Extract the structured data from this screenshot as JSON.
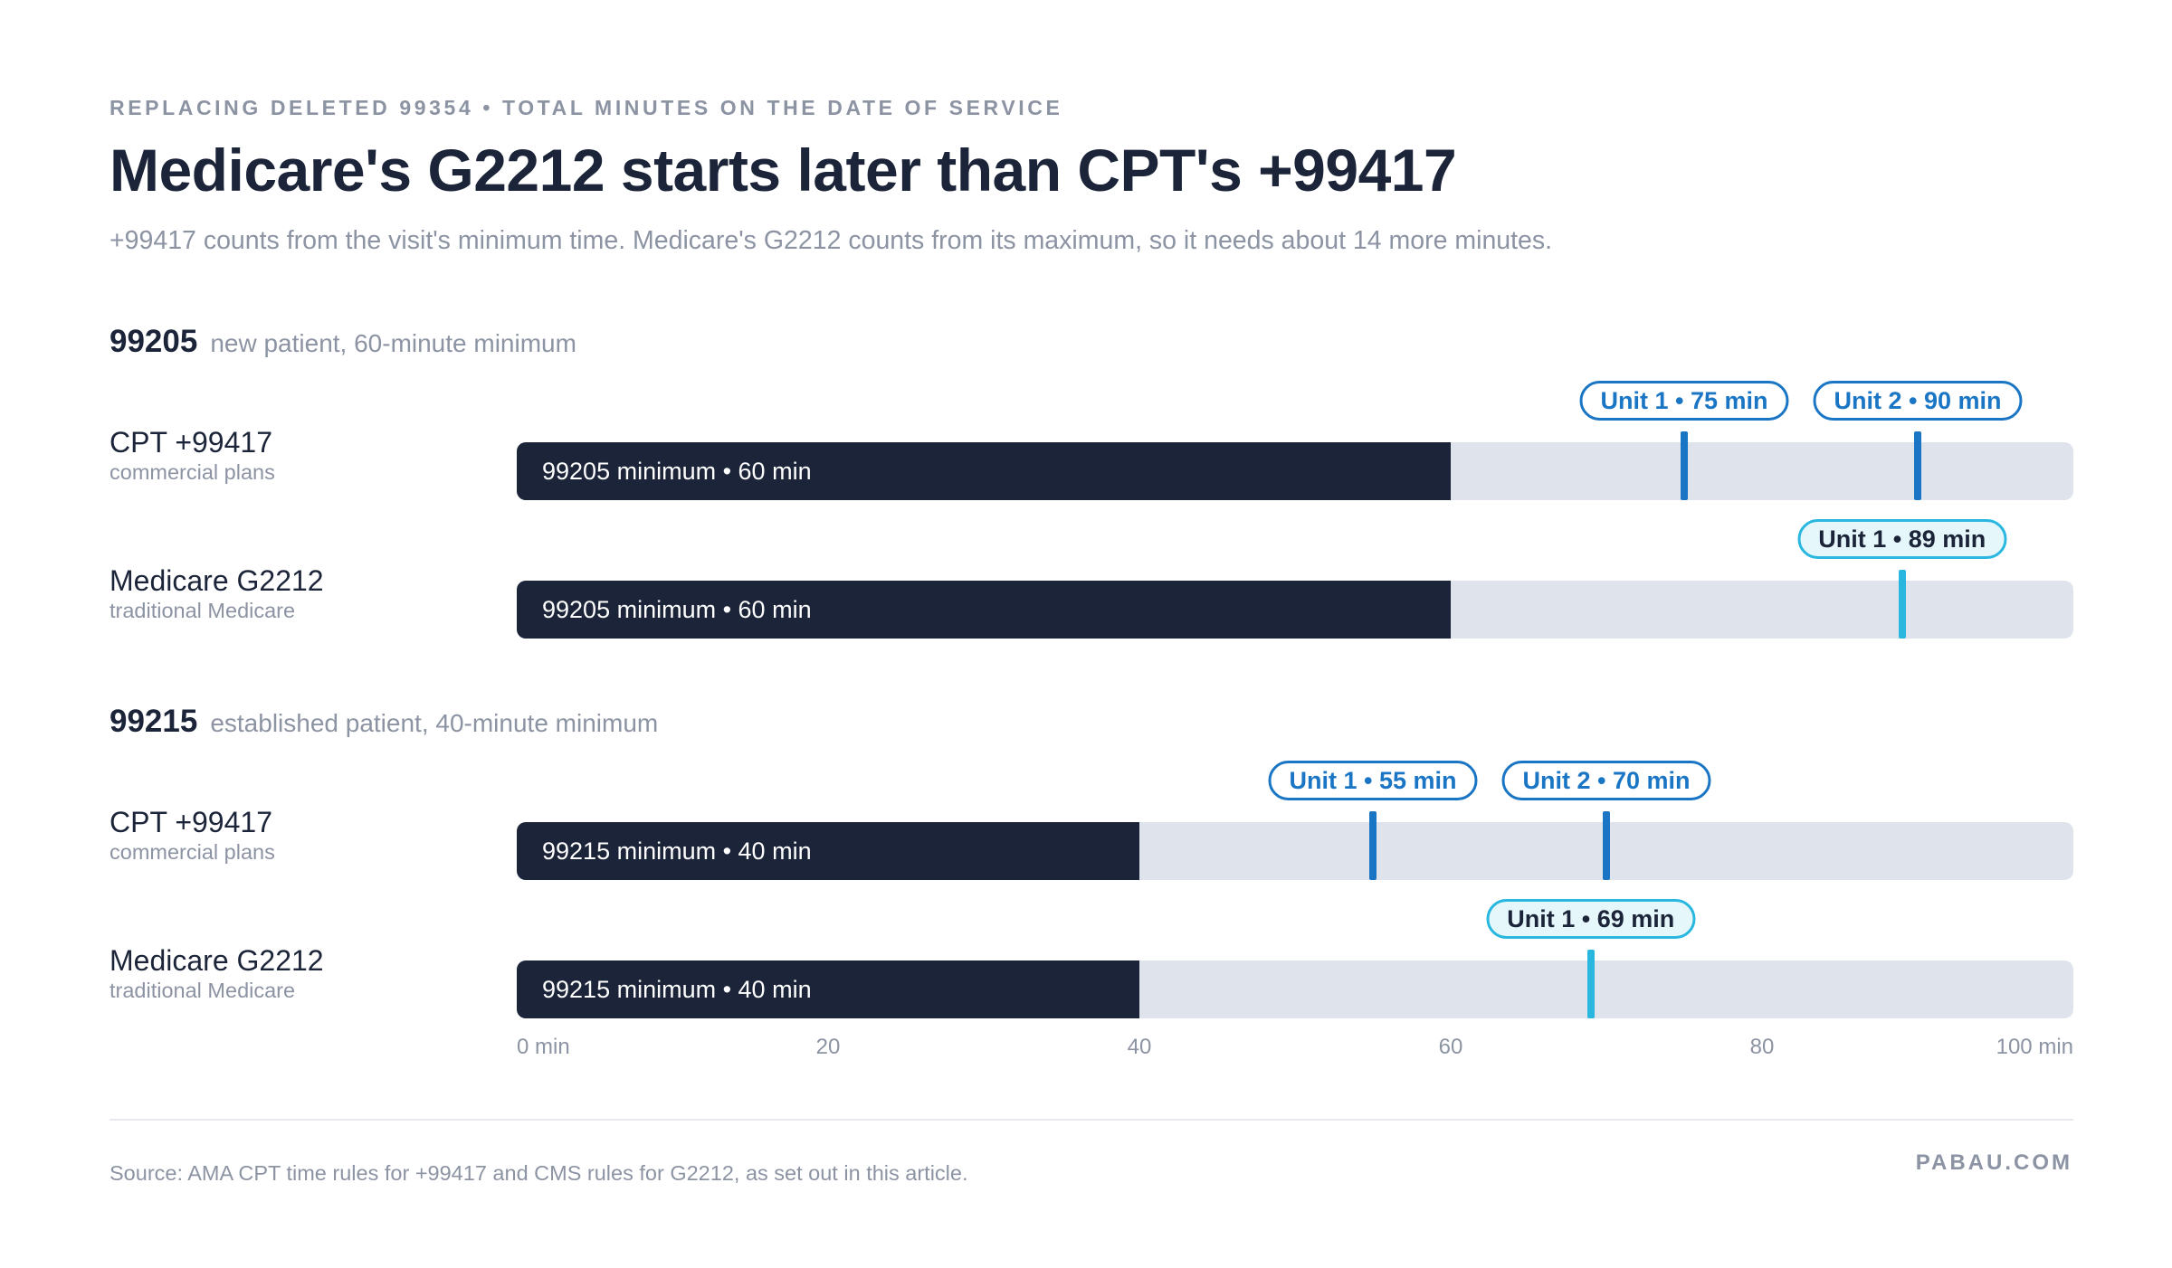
{
  "header": {
    "eyebrow": "REPLACING DELETED 99354 • TOTAL MINUTES ON THE DATE OF SERVICE",
    "title": "Medicare's G2212 starts later than CPT's +99417",
    "subtitle": "+99417 counts from the visit's minimum time. Medicare's G2212 counts from its maximum, so it needs about 14 more minutes."
  },
  "chart_data": {
    "type": "bar",
    "title": "Medicare's G2212 starts later than CPT's +99417",
    "xlim": [
      0,
      100
    ],
    "x_unit": "min",
    "x_ticks": [
      {
        "value": 0,
        "label": "0 min"
      },
      {
        "value": 20,
        "label": "20"
      },
      {
        "value": 40,
        "label": "40"
      },
      {
        "value": 60,
        "label": "60"
      },
      {
        "value": 80,
        "label": "80"
      },
      {
        "value": 100,
        "label": "100 min"
      }
    ],
    "grid": false,
    "colors": {
      "minimum_bar": "#1b2438",
      "track": "#dfe3ec",
      "cpt_marker": "#1a76c4",
      "medicare_marker": "#29b7e0"
    },
    "groups": [
      {
        "code": "99205",
        "description": "new patient, 60-minute minimum",
        "rows": [
          {
            "name": "CPT +99417",
            "sub": "commercial plans",
            "kind": "cpt",
            "minimum": 60,
            "minimum_label": "99205 minimum • 60 min",
            "markers": [
              {
                "value": 75,
                "label": "Unit 1 • 75 min"
              },
              {
                "value": 90,
                "label": "Unit 2 • 90 min"
              }
            ]
          },
          {
            "name": "Medicare G2212",
            "sub": "traditional Medicare",
            "kind": "med",
            "minimum": 60,
            "minimum_label": "99205 minimum • 60 min",
            "markers": [
              {
                "value": 89,
                "label": "Unit 1 • 89 min"
              }
            ]
          }
        ]
      },
      {
        "code": "99215",
        "description": "established patient, 40-minute minimum",
        "rows": [
          {
            "name": "CPT +99417",
            "sub": "commercial plans",
            "kind": "cpt",
            "minimum": 40,
            "minimum_label": "99215 minimum • 40 min",
            "markers": [
              {
                "value": 55,
                "label": "Unit 1 • 55 min"
              },
              {
                "value": 70,
                "label": "Unit 2 • 70 min"
              }
            ]
          },
          {
            "name": "Medicare G2212",
            "sub": "traditional Medicare",
            "kind": "med",
            "minimum": 40,
            "minimum_label": "99215 minimum • 40 min",
            "markers": [
              {
                "value": 69,
                "label": "Unit 1 • 69 min"
              }
            ]
          }
        ]
      }
    ]
  },
  "footer": {
    "source": "Source: AMA CPT time rules for +99417 and CMS rules for G2212, as set out in this article.",
    "brand": "PABAU.COM"
  }
}
